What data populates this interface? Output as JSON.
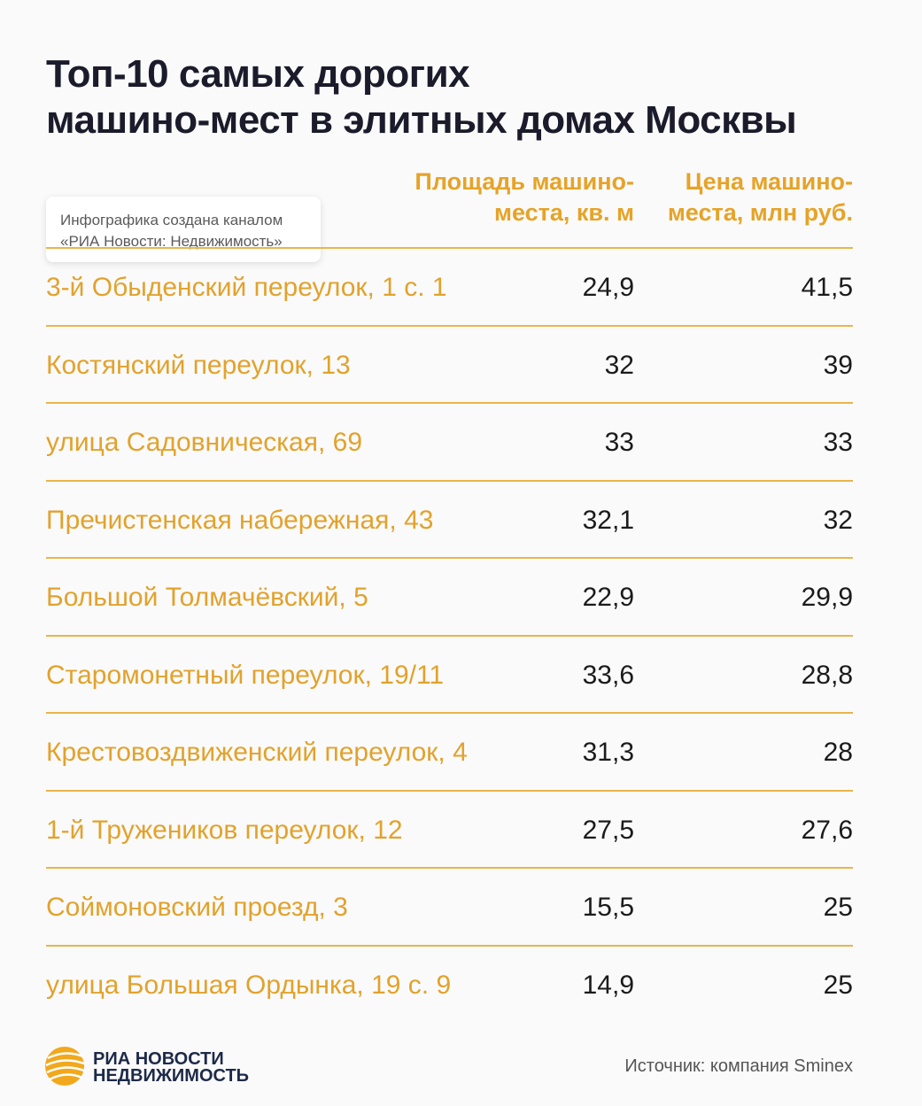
{
  "header": {
    "title": [
      "Топ-10 самых дорогих",
      "машино-мест в элитных домах Москвы"
    ],
    "note": [
      "Инфографика создана каналом",
      "«РИА Новости: Недвижимость»"
    ]
  },
  "table": {
    "columns": [
      [
        "Площадь машино-",
        "места, кв. м"
      ],
      [
        "Цена машино-",
        "места, млн руб."
      ]
    ],
    "rows": [
      [
        "3-й Обыденский переулок, 1 с. 1",
        "24,9",
        "41,5"
      ],
      [
        "Костянский переулок, 13",
        "32",
        "39"
      ],
      [
        "улица Садовническая, 69",
        "33",
        "33"
      ],
      [
        "Пречистенская набережная, 43",
        "32,1",
        "32"
      ],
      [
        "Большой Толмачёвский, 5",
        "22,9",
        "29,9"
      ],
      [
        "Старомонетный переулок, 19/11",
        "33,6",
        "28,8"
      ],
      [
        "Крестовоздвиженский переулок, 4",
        "31,3",
        "28"
      ],
      [
        "1-й Тружеников переулок, 12",
        "27,5",
        "27,6"
      ],
      [
        "Соймоновский проезд, 3",
        "15,5",
        "25"
      ],
      [
        "улица Большая Ордынка, 19 с. 9",
        "14,9",
        "25"
      ]
    ]
  },
  "footer": {
    "logo": [
      "РИА НОВОСТИ",
      "НЕДВИЖИМОСТЬ"
    ],
    "source": "Источник: компания Sminex"
  }
}
